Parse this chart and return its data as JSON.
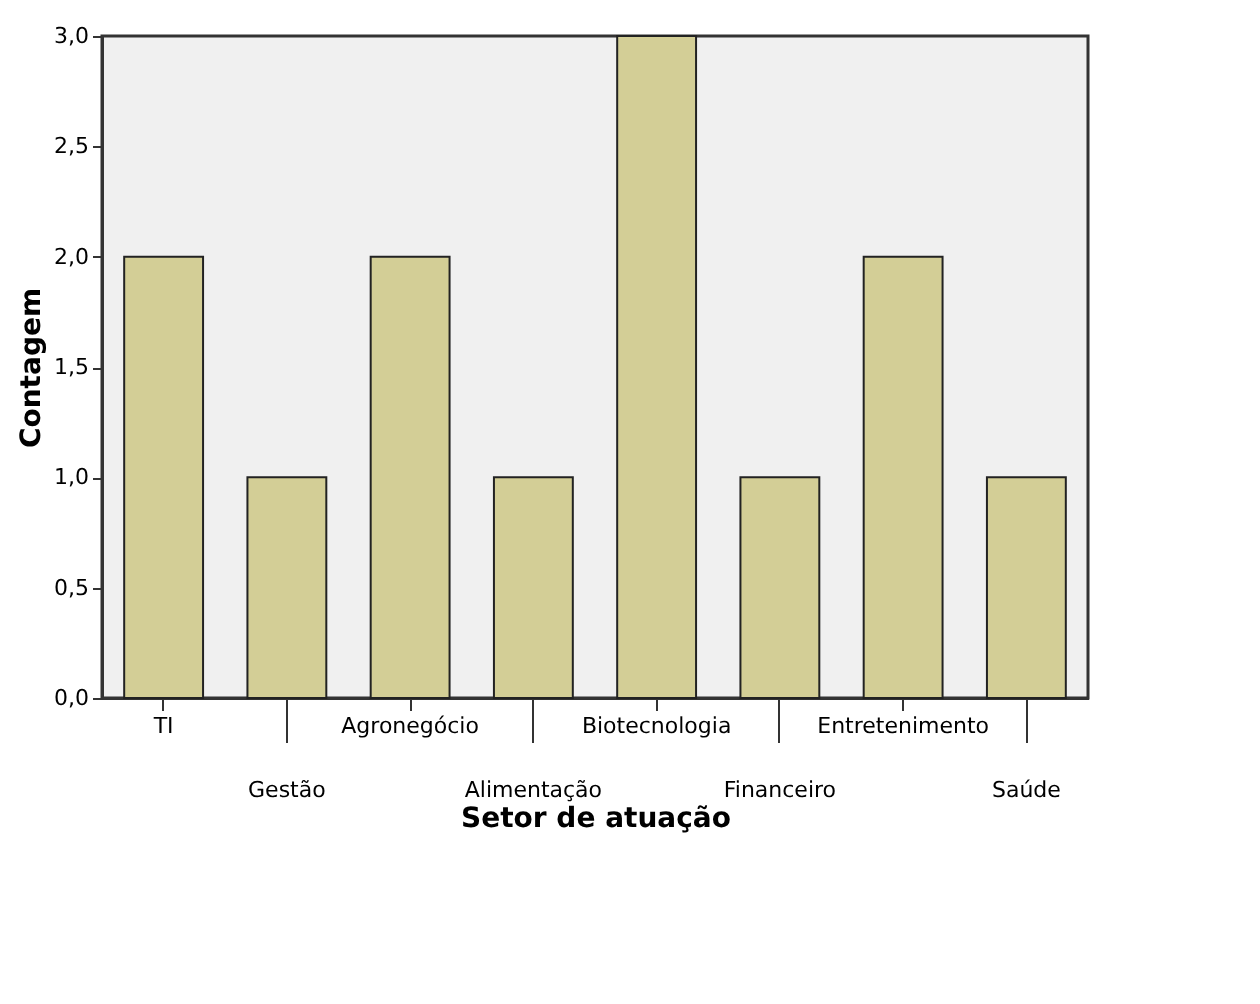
{
  "chart_data": {
    "type": "bar",
    "xlabel": "Setor de atuação",
    "ylabel": "Contagem",
    "categories": [
      "TI",
      "Gestão",
      "Agronegócio",
      "Alimentação",
      "Biotecnologia",
      "Financeiro",
      "Entretenimento",
      "Saúde"
    ],
    "values": [
      2,
      1,
      2,
      1,
      3,
      1,
      2,
      1
    ],
    "color": "#d3ce96",
    "ylim": [
      0,
      3
    ],
    "yticks": [
      {
        "value": 0,
        "label": "0,0"
      },
      {
        "value": 0.5,
        "label": "0,5"
      },
      {
        "value": 1,
        "label": "1,0"
      },
      {
        "value": 1.5,
        "label": "1,5"
      },
      {
        "value": 2,
        "label": "2,0"
      },
      {
        "value": 2.5,
        "label": "2,5"
      },
      {
        "value": 3,
        "label": "3,0"
      }
    ],
    "grid": false
  }
}
